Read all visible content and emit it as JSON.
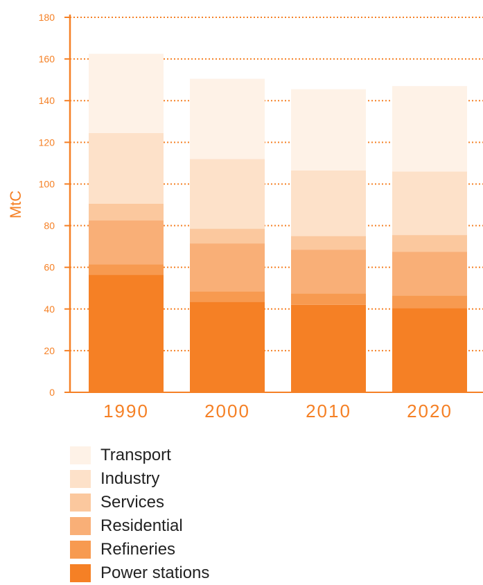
{
  "colors": {
    "axis": "#f58025",
    "grid": "#f58025",
    "text": "#f58025",
    "legend_text": "#222222"
  },
  "chart_data": {
    "type": "bar",
    "stacked": true,
    "title": "",
    "xlabel": "",
    "ylabel": "MtC",
    "ylim": [
      0,
      180
    ],
    "yticks": [
      0,
      20,
      40,
      60,
      80,
      100,
      120,
      140,
      160,
      180
    ],
    "grid": "horizontal dotted",
    "legend_position": "bottom-left",
    "categories": [
      "1990",
      "2000",
      "2010",
      "2020"
    ],
    "series": [
      {
        "name": "Power stations",
        "color": "#f58025",
        "values": [
          56.5,
          43.5,
          42,
          40.5
        ]
      },
      {
        "name": "Refineries",
        "color": "#f79a50",
        "values": [
          5,
          5,
          5.5,
          6
        ]
      },
      {
        "name": "Residential",
        "color": "#f9af77",
        "values": [
          21,
          23,
          21,
          21
        ]
      },
      {
        "name": "Services",
        "color": "#fbc89e",
        "values": [
          8,
          7,
          6.5,
          8
        ]
      },
      {
        "name": "Industry",
        "color": "#fde1c9",
        "values": [
          34,
          33.5,
          31.5,
          30.5
        ]
      },
      {
        "name": "Transport",
        "color": "#fef2e7",
        "values": [
          38,
          38.5,
          39,
          41
        ]
      }
    ]
  }
}
